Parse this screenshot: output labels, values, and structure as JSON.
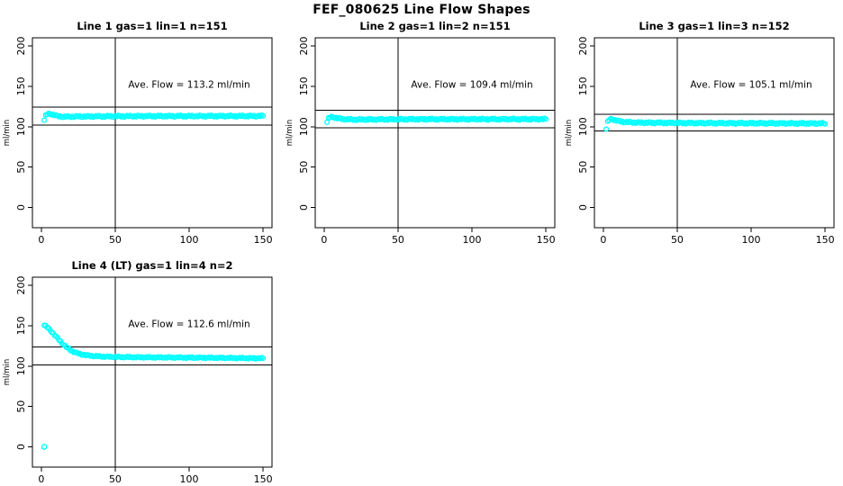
{
  "page_title": "FEF_080625  Line Flow Shapes",
  "colors": {
    "marker": "#00ffff",
    "axis": "#000000",
    "background": "#ffffff"
  },
  "chart_data": [
    {
      "type": "scatter",
      "title": "Line 1 gas=1 lin=1 n=151",
      "annotation": "Ave. Flow =  113.2  ml/min",
      "ave_flow_ml_min": 113.2,
      "n": 151,
      "xlabel": "",
      "ylabel": "ml/min",
      "xlim": [
        0,
        150
      ],
      "ylim": [
        0,
        200
      ],
      "x_ticks": [
        0,
        50,
        100,
        150
      ],
      "y_ticks": [
        0,
        50,
        100,
        150,
        200
      ],
      "vline_x": 50,
      "ref_lines_y": [
        124.5,
        101.9
      ],
      "marker": "open-circle",
      "marker_color": "#00ffff",
      "n_points": 149,
      "x_start": 2,
      "x_end": 150,
      "jitter": 1.0,
      "anchors": [
        [
          2,
          108
        ],
        [
          3,
          113.5
        ],
        [
          4,
          115.5
        ],
        [
          6,
          116
        ],
        [
          8,
          115
        ],
        [
          11,
          113
        ],
        [
          15,
          112.3
        ],
        [
          25,
          112.6
        ],
        [
          60,
          113
        ],
        [
          150,
          113.2
        ]
      ],
      "outliers": []
    },
    {
      "type": "scatter",
      "title": "Line 2 gas=1 lin=2 n=151",
      "annotation": "Ave. Flow =  109.4  ml/min",
      "ave_flow_ml_min": 109.4,
      "n": 151,
      "xlabel": "",
      "ylabel": "ml/min",
      "xlim": [
        0,
        150
      ],
      "ylim": [
        0,
        200
      ],
      "x_ticks": [
        0,
        50,
        100,
        150
      ],
      "y_ticks": [
        0,
        50,
        100,
        150,
        200
      ],
      "vline_x": 50,
      "ref_lines_y": [
        120.3,
        98.5
      ],
      "marker": "open-circle",
      "marker_color": "#00ffff",
      "n_points": 149,
      "x_start": 2,
      "x_end": 150,
      "jitter": 1.0,
      "anchors": [
        [
          2,
          105.5
        ],
        [
          3,
          110
        ],
        [
          4,
          111.5
        ],
        [
          6,
          112
        ],
        [
          8,
          111
        ],
        [
          12,
          109.5
        ],
        [
          20,
          108.8
        ],
        [
          60,
          109.2
        ],
        [
          150,
          109.3
        ]
      ],
      "outliers": []
    },
    {
      "type": "scatter",
      "title": "Line 3 gas=1 lin=3 n=152",
      "annotation": "Ave. Flow =  105.1  ml/min",
      "ave_flow_ml_min": 105.1,
      "n": 152,
      "xlabel": "",
      "ylabel": "ml/min",
      "xlim": [
        0,
        150
      ],
      "ylim": [
        0,
        200
      ],
      "x_ticks": [
        0,
        50,
        100,
        150
      ],
      "y_ticks": [
        0,
        50,
        100,
        150,
        200
      ],
      "vline_x": 50,
      "ref_lines_y": [
        115.6,
        94.6
      ],
      "marker": "open-circle",
      "marker_color": "#00ffff",
      "n_points": 150,
      "x_start": 2,
      "x_end": 150,
      "jitter": 1.0,
      "anchors": [
        [
          2,
          97
        ],
        [
          3,
          106
        ],
        [
          4,
          108.5
        ],
        [
          6,
          109.5
        ],
        [
          9,
          107.5
        ],
        [
          14,
          105.8
        ],
        [
          25,
          105
        ],
        [
          60,
          104.5
        ],
        [
          150,
          104
        ]
      ],
      "outliers": []
    },
    {
      "type": "scatter",
      "title": "Line 4 (LT) gas=1 lin=4 n=2",
      "annotation": "Ave. Flow =  112.6  ml/min",
      "ave_flow_ml_min": 112.6,
      "n": 2,
      "xlabel": "",
      "ylabel": "ml/min",
      "xlim": [
        0,
        150
      ],
      "ylim": [
        0,
        200
      ],
      "x_ticks": [
        0,
        50,
        100,
        150
      ],
      "y_ticks": [
        0,
        50,
        100,
        150,
        200
      ],
      "vline_x": 50,
      "ref_lines_y": [
        123.9,
        101.3
      ],
      "marker": "open-circle",
      "marker_color": "#00ffff",
      "n_points": 149,
      "x_start": 2,
      "x_end": 150,
      "jitter": 0.8,
      "anchors": [
        [
          2,
          150.5
        ],
        [
          3,
          149.5
        ],
        [
          4,
          148
        ],
        [
          6,
          144.5
        ],
        [
          8,
          140.5
        ],
        [
          10,
          136.5
        ],
        [
          12,
          132.5
        ],
        [
          14,
          128.5
        ],
        [
          16,
          125
        ],
        [
          18,
          122
        ],
        [
          20,
          119.5
        ],
        [
          23,
          116.8
        ],
        [
          26,
          115
        ],
        [
          30,
          113.5
        ],
        [
          36,
          112.3
        ],
        [
          45,
          111.5
        ],
        [
          60,
          111
        ],
        [
          90,
          110.6
        ],
        [
          120,
          110.2
        ],
        [
          150,
          109.6
        ]
      ],
      "outliers": [
        [
          2,
          0
        ]
      ]
    }
  ]
}
